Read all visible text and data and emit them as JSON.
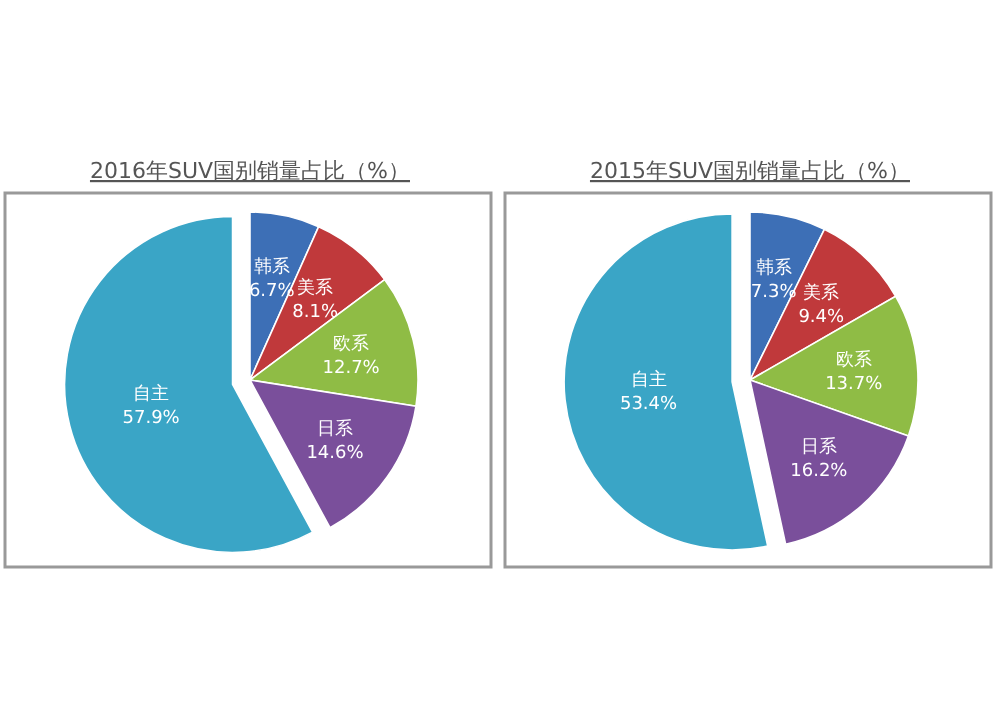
{
  "chart_data": [
    {
      "type": "pie",
      "title": "2016年SUV国别销量占比（%）",
      "categories": [
        "韩系",
        "美系",
        "欧系",
        "日系",
        "自主"
      ],
      "values": [
        6.7,
        8.1,
        12.7,
        14.6,
        57.9
      ],
      "colors": [
        "#3d6fb6",
        "#c0393b",
        "#8fbc45",
        "#7a4f9b",
        "#3aa5c6"
      ],
      "value_labels": [
        "6.7%",
        "8.1%",
        "12.7%",
        "14.6%",
        "57.9%"
      ]
    },
    {
      "type": "pie",
      "title": "2015年SUV国别销量占比（%）",
      "categories": [
        "韩系",
        "美系",
        "欧系",
        "日系",
        "自主"
      ],
      "values": [
        7.3,
        9.4,
        13.7,
        16.2,
        53.4
      ],
      "colors": [
        "#3d6fb6",
        "#c0393b",
        "#8fbc45",
        "#7a4f9b",
        "#3aa5c6"
      ],
      "value_labels": [
        "7.3%",
        "9.4%",
        "13.7%",
        "16.2%",
        "53.4%"
      ]
    }
  ]
}
